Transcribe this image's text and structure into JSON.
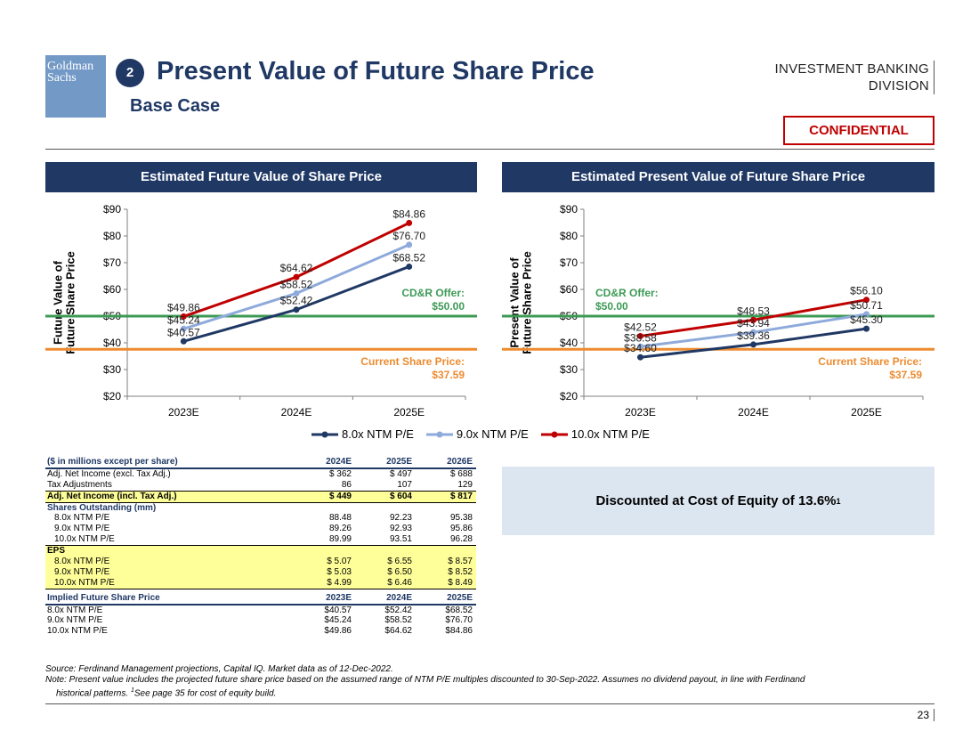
{
  "header": {
    "logo_line1": "Goldman",
    "logo_line2": "Sachs",
    "section_number": "2",
    "title": "Present Value of Future Share Price",
    "subtitle": "Base Case",
    "division_line1": "INVESTMENT BANKING",
    "division_line2": "DIVISION",
    "confidential": "CONFIDENTIAL"
  },
  "chart_data": [
    {
      "type": "line",
      "title": "Estimated Future Value of Share Price",
      "ylabel": "Future Value of Future Share Price",
      "xlabel": "",
      "categories": [
        "2023E",
        "2024E",
        "2025E"
      ],
      "ylim": [
        20,
        90
      ],
      "yticks": [
        20,
        30,
        40,
        50,
        60,
        70,
        80,
        90
      ],
      "ytick_labels": [
        "$20",
        "$30",
        "$40",
        "$50",
        "$60",
        "$70",
        "$80",
        "$90"
      ],
      "series": [
        {
          "name": "8.0x NTM P/E",
          "color": "#1f3864",
          "values": [
            40.57,
            52.42,
            68.52
          ],
          "labels": [
            "$40.57",
            "$52.42",
            "$68.52"
          ]
        },
        {
          "name": "9.0x NTM P/E",
          "color": "#8eaadb",
          "values": [
            45.24,
            58.52,
            76.7
          ],
          "labels": [
            "$45.24",
            "$58.52",
            "$76.70"
          ]
        },
        {
          "name": "10.0x NTM P/E",
          "color": "#c00000",
          "values": [
            49.86,
            64.62,
            84.86
          ],
          "labels": [
            "$49.86",
            "$64.62",
            "$84.86"
          ]
        }
      ],
      "reference_lines": [
        {
          "value": 50.0,
          "color": "#3c9a55",
          "label1": "CD&R Offer:",
          "label2": "$50.00",
          "label_side": "right"
        },
        {
          "value": 37.59,
          "color": "#ed8b2f",
          "label1": "Current Share Price:",
          "label2": "$37.59",
          "label_side": "right"
        }
      ]
    },
    {
      "type": "line",
      "title": "Estimated Present Value of Future Share Price",
      "ylabel": "Present Value of Future Share Price",
      "xlabel": "",
      "categories": [
        "2023E",
        "2024E",
        "2025E"
      ],
      "ylim": [
        20,
        90
      ],
      "yticks": [
        20,
        30,
        40,
        50,
        60,
        70,
        80,
        90
      ],
      "ytick_labels": [
        "$20",
        "$30",
        "$40",
        "$50",
        "$60",
        "$70",
        "$80",
        "$90"
      ],
      "series": [
        {
          "name": "8.0x NTM P/E",
          "color": "#1f3864",
          "values": [
            34.6,
            39.36,
            45.3
          ],
          "labels": [
            "$34.60",
            "$39.36",
            "$45.30"
          ]
        },
        {
          "name": "9.0x NTM P/E",
          "color": "#8eaadb",
          "values": [
            38.58,
            43.94,
            50.71
          ],
          "labels": [
            "$38.58",
            "$43.94",
            "$50.71"
          ]
        },
        {
          "name": "10.0x NTM P/E",
          "color": "#c00000",
          "values": [
            42.52,
            48.53,
            56.1
          ],
          "labels": [
            "$42.52",
            "$48.53",
            "$56.10"
          ]
        }
      ],
      "reference_lines": [
        {
          "value": 50.0,
          "color": "#3c9a55",
          "label1": "CD&R Offer:",
          "label2": "$50.00",
          "label_side": "left"
        },
        {
          "value": 37.59,
          "color": "#ed8b2f",
          "label1": "Current Share Price:",
          "label2": "$37.59",
          "label_side": "right"
        }
      ]
    }
  ],
  "legend": [
    "8.0x NTM P/E",
    "9.0x NTM P/E",
    "10.0x NTM P/E"
  ],
  "table": {
    "header": {
      "label": "($ in millions except per share)",
      "cols": [
        "2024E",
        "2025E",
        "2026E"
      ]
    },
    "net_income": {
      "label": "Adj. Net Income (excl. Tax Adj.)",
      "vals": [
        "$ 362",
        "$ 497",
        "$ 688"
      ]
    },
    "tax_adj": {
      "label": "Tax Adjustments",
      "vals": [
        "86",
        "107",
        "129"
      ]
    },
    "net_income_adj": {
      "label": "Adj. Net Income (incl. Tax Adj.)",
      "vals": [
        "$ 449",
        "$ 604",
        "$ 817"
      ]
    },
    "shares_label": "Shares Outstanding (mm)",
    "shares": [
      {
        "label": "8.0x NTM P/E",
        "vals": [
          "88.48",
          "92.23",
          "95.38"
        ]
      },
      {
        "label": "9.0x NTM P/E",
        "vals": [
          "89.26",
          "92.93",
          "95.86"
        ]
      },
      {
        "label": "10.0x NTM P/E",
        "vals": [
          "89.99",
          "93.51",
          "96.28"
        ]
      }
    ],
    "eps_label": "EPS",
    "eps": [
      {
        "label": "8.0x NTM P/E",
        "vals": [
          "$ 5.07",
          "$ 6.55",
          "$ 8.57"
        ]
      },
      {
        "label": "9.0x NTM P/E",
        "vals": [
          "$ 5.03",
          "$ 6.50",
          "$ 8.52"
        ]
      },
      {
        "label": "10.0x NTM P/E",
        "vals": [
          "$ 4.99",
          "$ 6.46",
          "$ 8.49"
        ]
      }
    ],
    "implied_header": {
      "label": "Implied Future Share Price",
      "cols": [
        "2023E",
        "2024E",
        "2025E"
      ]
    },
    "implied": [
      {
        "label": "8.0x NTM P/E",
        "vals": [
          "$40.57",
          "$52.42",
          "$68.52"
        ]
      },
      {
        "label": "9.0x NTM P/E",
        "vals": [
          "$45.24",
          "$58.52",
          "$76.70"
        ]
      },
      {
        "label": "10.0x NTM P/E",
        "vals": [
          "$49.86",
          "$64.62",
          "$84.86"
        ]
      }
    ]
  },
  "discount_box": {
    "text": "Discounted at Cost of Equity of 13.6%",
    "footnote_mark": "1"
  },
  "footer": {
    "source": "Source: Ferdinand Management projections, Capital IQ. Market data as of 12-Dec-2022.",
    "note_line1": "Note: Present value includes the projected future share price based on the assumed range of NTM P/E multiples discounted to 30-Sep-2022. Assumes no dividend payout, in line with Ferdinand",
    "note_line2_a": "historical patterns. ",
    "note_line2_mark": "1",
    "note_line2_b": "See page 35 for cost of equity build.",
    "page_number": "23"
  }
}
